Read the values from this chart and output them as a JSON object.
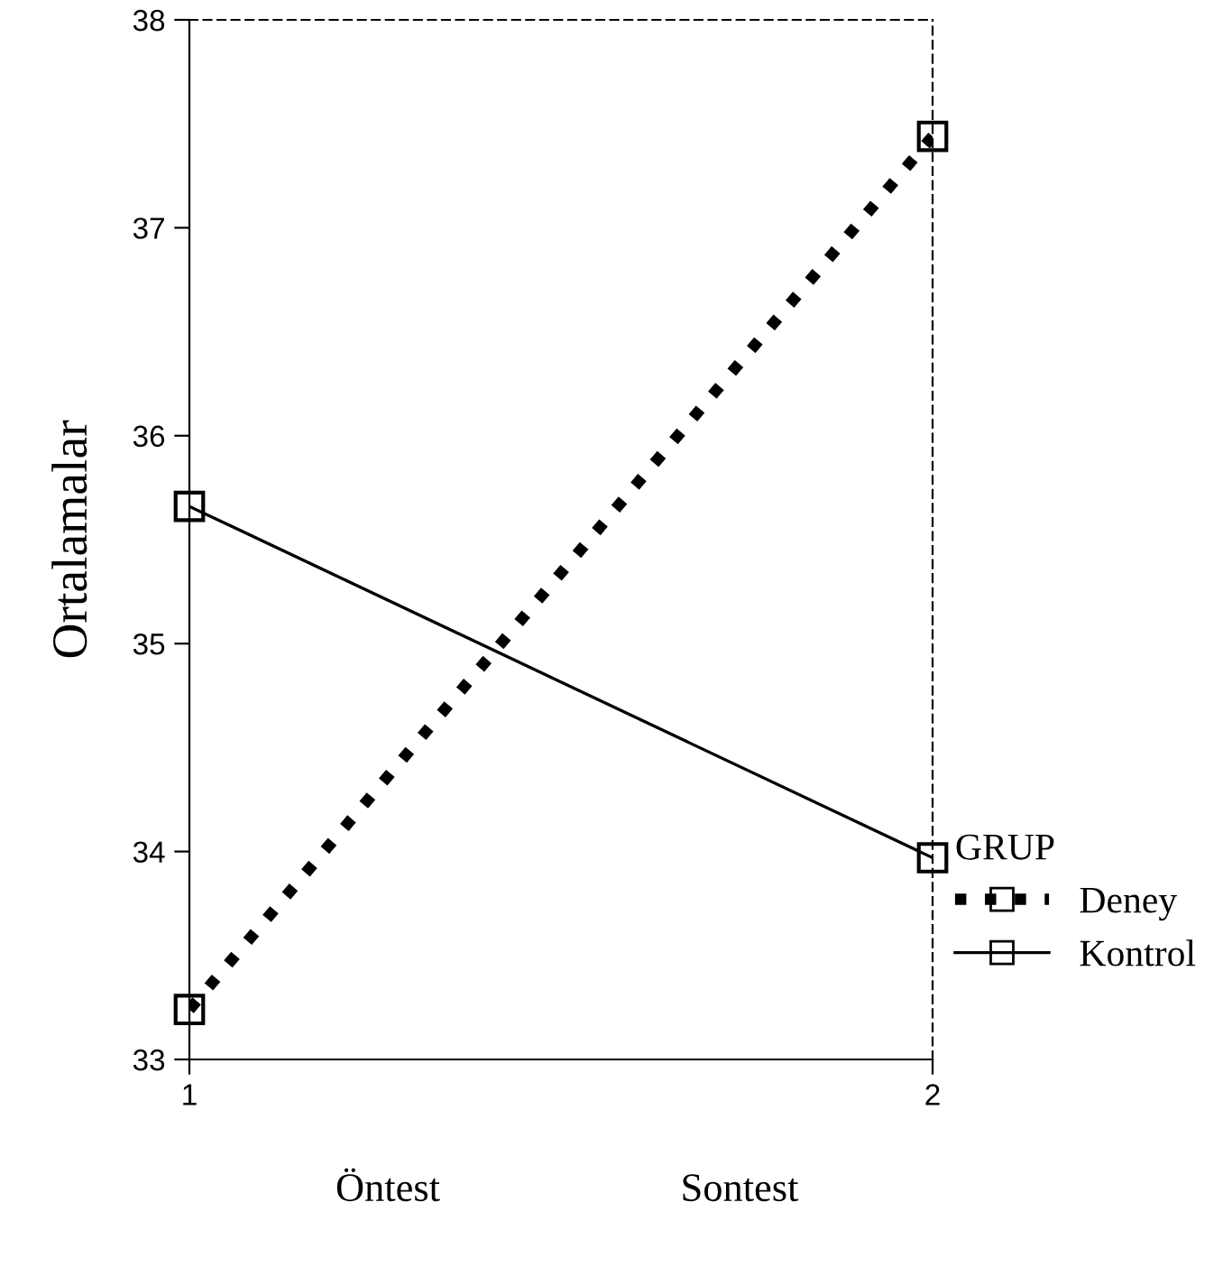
{
  "chart_data": {
    "type": "line",
    "ylabel": "Ortalamalar",
    "legend_title": "GRUP",
    "x": [
      1,
      2
    ],
    "series": [
      {
        "name": "Deney",
        "color": "#000000",
        "values": [
          33.24,
          37.44
        ],
        "line_style": "dotted"
      },
      {
        "name": "Kontrol",
        "color": "#000000",
        "values": [
          35.66,
          33.97
        ],
        "line_style": "solid"
      }
    ],
    "xlim": [
      1,
      2
    ],
    "xticks": [
      1,
      2
    ],
    "ylim": [
      33,
      38
    ],
    "yticks": [
      33,
      34,
      35,
      36,
      37,
      38
    ],
    "marker": "square",
    "grid": false,
    "legend": "right",
    "annotations": [
      "Öntest",
      "Sontest"
    ]
  }
}
